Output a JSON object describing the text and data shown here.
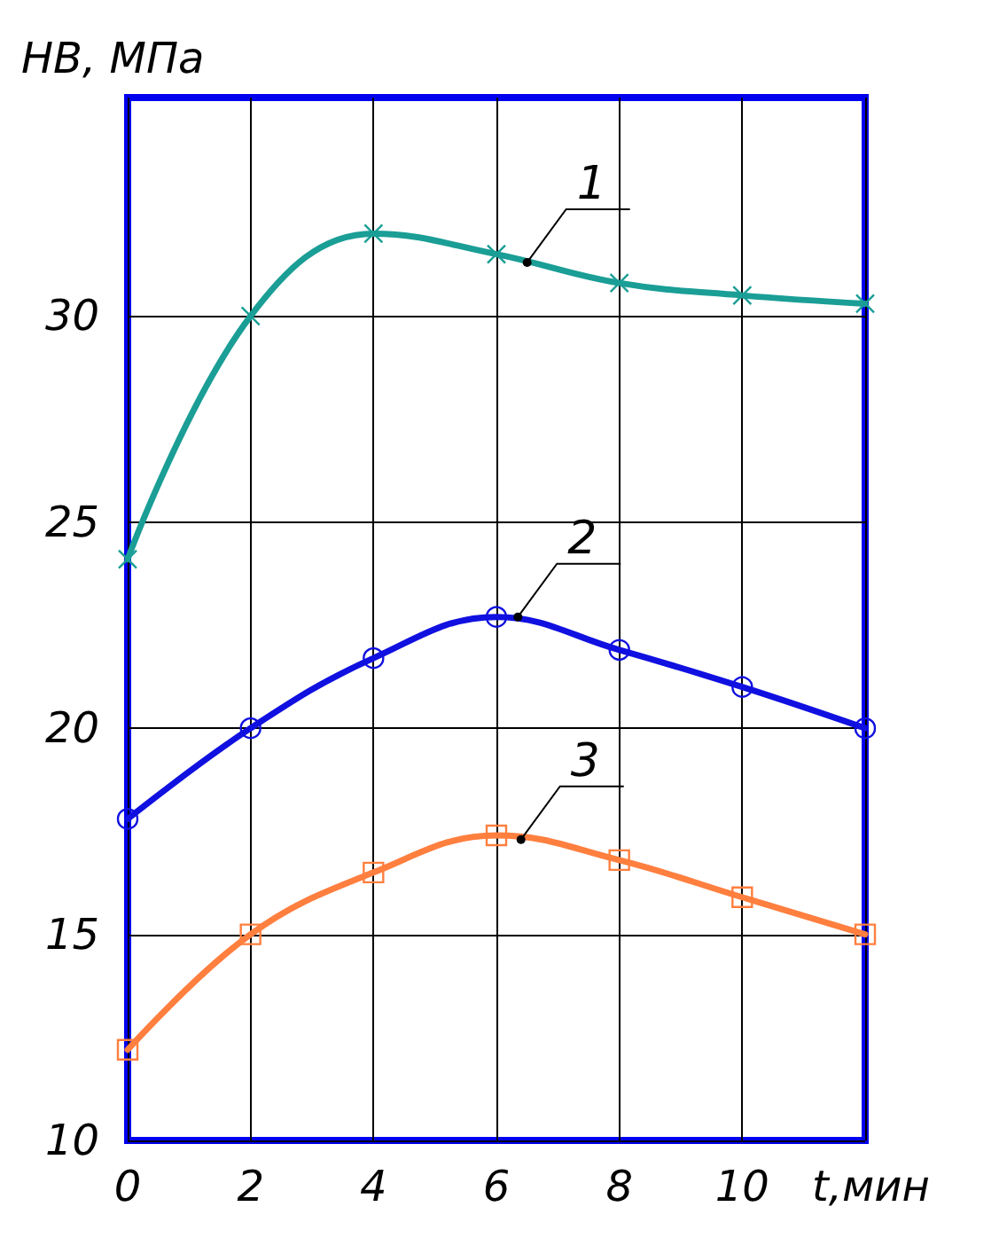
{
  "chart_data": {
    "type": "line",
    "xlabel": "t,мин",
    "ylabel": "НВ, МПа",
    "x": [
      0,
      2,
      4,
      6,
      8,
      10,
      12
    ],
    "series": [
      {
        "color": "#1a9e96",
        "marker": "cross",
        "values": [
          24.1,
          30,
          32,
          31.5,
          30.8,
          30.5,
          30.3
        ]
      },
      {
        "color": "#1010e0",
        "marker": "circle",
        "values": [
          17.8,
          20,
          21.7,
          22.7,
          21.9,
          21.0,
          20
        ]
      },
      {
        "color": "#ff7f3f",
        "marker": "square",
        "values": [
          12.2,
          15,
          16.5,
          17.4,
          16.8,
          15.9,
          15
        ]
      }
    ],
    "xlim": [
      0,
      12
    ],
    "xticks": [
      0,
      2,
      4,
      6,
      8,
      10,
      {
        "value": 12,
        "label": null
      }
    ],
    "ylim": [
      10,
      35.3
    ],
    "yticks": [
      10,
      15,
      20,
      25,
      30
    ],
    "grid": true,
    "line_style": "solid",
    "annotations": [
      {
        "text": "1",
        "x": 6.5,
        "y": 31.3
      },
      {
        "text": "2",
        "x": 6.35,
        "y": 22.7
      },
      {
        "text": "3",
        "x": 6.4,
        "y": 17.3
      }
    ]
  }
}
